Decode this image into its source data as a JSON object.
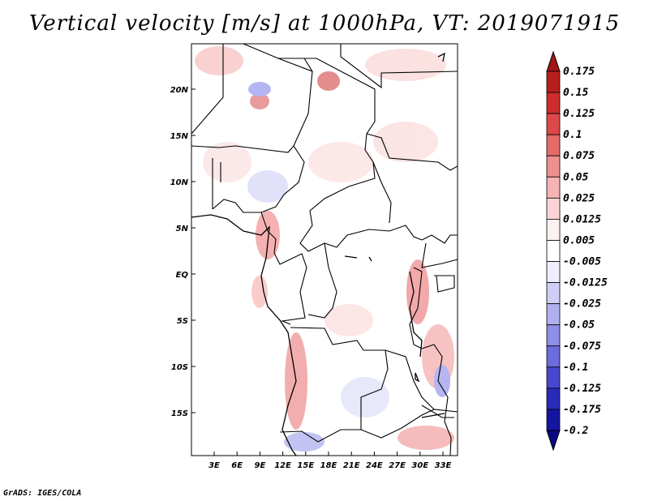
{
  "title": "Vertical velocity [m/s] at 1000hPa, VT: 2019071915",
  "credit": "GrADS: IGES/COLA",
  "map": {
    "lat_labels": [
      "20N",
      "15N",
      "10N",
      "5N",
      "EQ",
      "5S",
      "10S",
      "15S"
    ],
    "lon_labels": [
      "3E",
      "6E",
      "9E",
      "12E",
      "15E",
      "18E",
      "21E",
      "24E",
      "27E",
      "30E",
      "33E"
    ],
    "border_color": "#000000",
    "field_positive_color": "#f4a4a4",
    "field_negative_color": "#a9a9f0"
  },
  "colorbar": {
    "labels": [
      "0.175",
      "0.15",
      "0.125",
      "0.1",
      "0.075",
      "0.05",
      "0.025",
      "0.0125",
      "0.005",
      "-0.005",
      "-0.0125",
      "-0.025",
      "-0.05",
      "-0.075",
      "-0.1",
      "-0.125",
      "-0.175",
      "-0.2"
    ],
    "colors": [
      "#a01616",
      "#b81e1e",
      "#cd2c2c",
      "#de4848",
      "#e56a6a",
      "#ee9090",
      "#f5b3b3",
      "#fad4d4",
      "#fdf0f0",
      "#ffffff",
      "#eeeefe",
      "#cfcff6",
      "#b0b0ee",
      "#8f8fe6",
      "#6c6cdc",
      "#4848ce",
      "#2a2ab8",
      "#1515a0",
      "#0a0a80"
    ]
  }
}
